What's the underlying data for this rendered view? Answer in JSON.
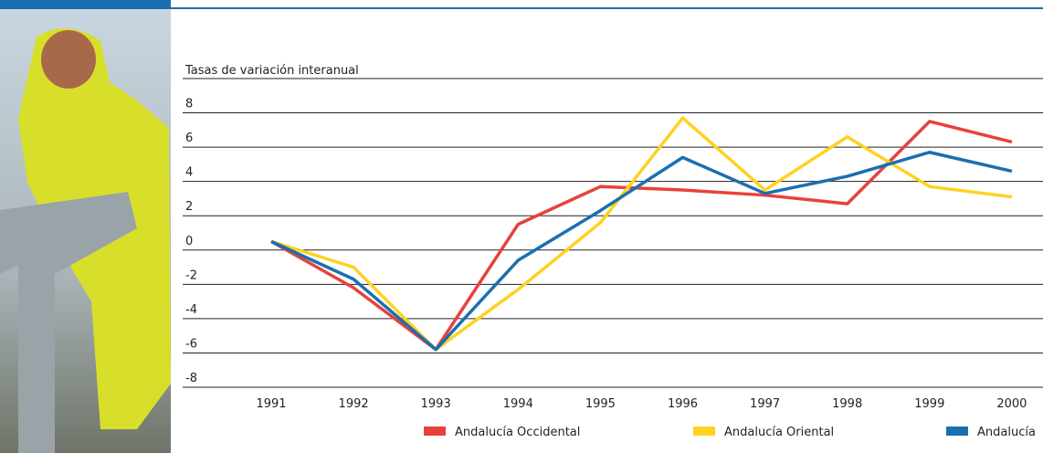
{
  "chart_data": {
    "type": "line",
    "y_axis_label": "Tasas de variación interanual",
    "categories": [
      "1991",
      "1992",
      "1993",
      "1994",
      "1995",
      "1996",
      "1997",
      "1998",
      "1999",
      "2000"
    ],
    "series": [
      {
        "name": "Andalucía Occidental",
        "color": "#e8413c",
        "values": [
          0.5,
          -2.2,
          -5.8,
          1.5,
          3.7,
          3.5,
          3.2,
          2.7,
          7.5,
          6.3
        ]
      },
      {
        "name": "Andalucía Oriental",
        "color": "#ffd21f",
        "values": [
          0.5,
          -1.0,
          -5.8,
          -2.3,
          1.6,
          7.7,
          3.5,
          6.6,
          3.7,
          3.1
        ]
      },
      {
        "name": "Andalucía",
        "color": "#1a6fb0",
        "values": [
          0.5,
          -1.7,
          -5.8,
          -0.6,
          2.3,
          5.4,
          3.3,
          4.3,
          5.7,
          4.6
        ]
      }
    ],
    "ylim": [
      -8,
      10
    ],
    "yticks": [
      -8,
      -6,
      -4,
      -2,
      0,
      2,
      4,
      6,
      8
    ],
    "grid": true
  }
}
